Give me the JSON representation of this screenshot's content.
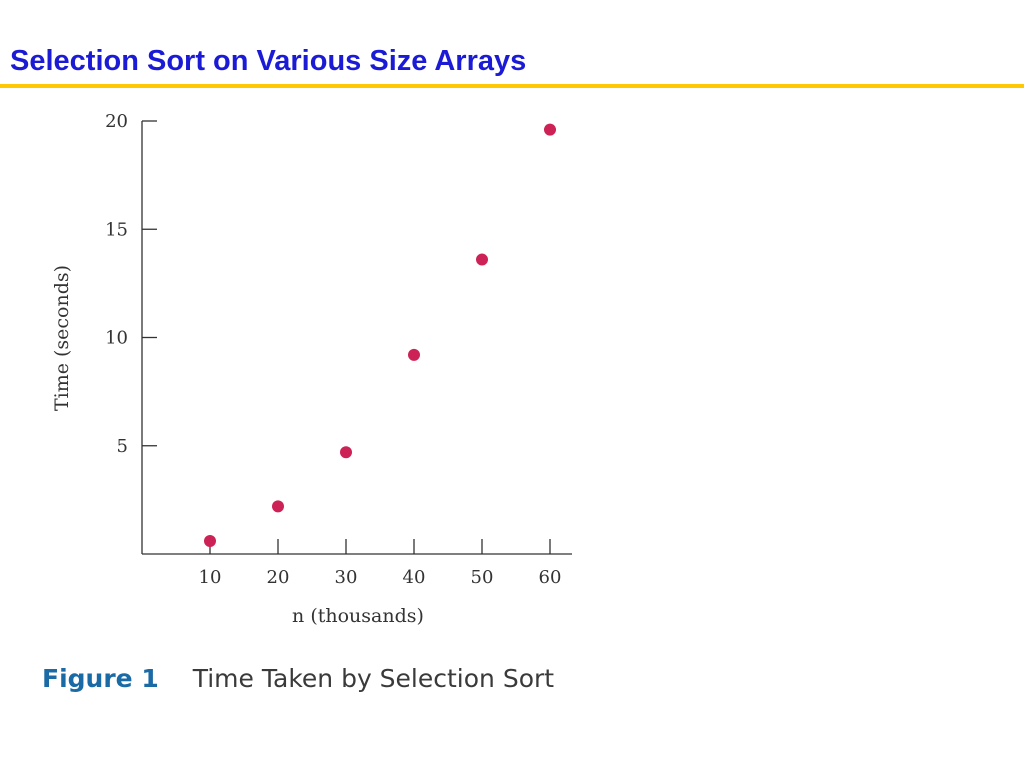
{
  "slide": {
    "title": "Selection Sort on Various Size Arrays",
    "colors": {
      "title": "#1b1bd6",
      "rule": "#ffc800",
      "points": "#cc2255",
      "caption_label": "#1a6aa6"
    }
  },
  "chart_data": {
    "type": "scatter",
    "title": "",
    "xlabel": "n (thousands)",
    "ylabel": "Time (seconds)",
    "x": [
      10,
      20,
      30,
      40,
      50,
      60
    ],
    "y": [
      0.6,
      2.2,
      4.7,
      9.2,
      13.6,
      19.6
    ],
    "xticks": [
      10,
      20,
      30,
      40,
      50,
      60
    ],
    "yticks": [
      5,
      10,
      15,
      20
    ],
    "xlim": [
      0,
      65
    ],
    "ylim": [
      0,
      20
    ],
    "grid": false,
    "legend": "none"
  },
  "caption": {
    "label": "Figure 1",
    "text": "Time Taken by Selection Sort"
  }
}
